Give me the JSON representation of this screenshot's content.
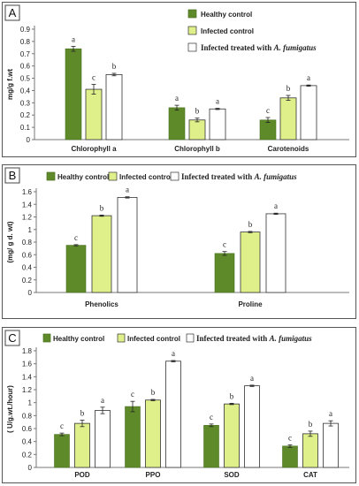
{
  "colors": {
    "healthy": "#5e8a2a",
    "infected": "#dff08a",
    "treated": "#ffffff",
    "axis": "#777777",
    "edge": "#333333"
  },
  "chart_data": [
    {
      "panel_label": "A",
      "type": "bar",
      "ylabel": "mg/g f.wt",
      "ylim": [
        0,
        0.9
      ],
      "yticks": [
        "0",
        "0.1",
        "0.2",
        "0.3",
        "0.4",
        "0.5",
        "0.6",
        "0.7",
        "0.8",
        "0.9"
      ],
      "categories": [
        "Chlorophyll a",
        "Chlorophyll b",
        "Carotenoids"
      ],
      "legend": [
        "Healthy control",
        "Infected control",
        "Infected treated with "
      ],
      "legend_italic": "A. fumigatus",
      "series": [
        {
          "name": "Healthy control",
          "values": [
            0.74,
            0.26,
            0.16
          ],
          "errors": [
            0.02,
            0.02,
            0.02
          ],
          "letters": [
            "a",
            "a",
            "c"
          ]
        },
        {
          "name": "Infected control",
          "values": [
            0.41,
            0.16,
            0.34
          ],
          "errors": [
            0.04,
            0.015,
            0.02
          ],
          "letters": [
            "c",
            "b",
            "b"
          ]
        },
        {
          "name": "Infected treated with A. fumigatus",
          "values": [
            0.53,
            0.25,
            0.44
          ],
          "errors": [
            0.01,
            0.005,
            0.005
          ],
          "letters": [
            "b",
            "a",
            "a"
          ]
        }
      ]
    },
    {
      "panel_label": "B",
      "type": "bar",
      "ylabel": "(mg/ g d. wt)",
      "ylim": [
        0,
        1.6
      ],
      "yticks": [
        "0",
        "0.2",
        "0.4",
        "0.6",
        "0.8",
        "1",
        "1.2",
        "1.4",
        "1.6"
      ],
      "categories": [
        "Phenolics",
        "Proline"
      ],
      "legend": [
        "Healthy control",
        "Infected control",
        "Infected treated with "
      ],
      "legend_italic": "A. fumigatus",
      "series": [
        {
          "name": "Healthy control",
          "values": [
            0.75,
            0.62
          ],
          "errors": [
            0.01,
            0.03
          ],
          "letters": [
            "c",
            "c"
          ]
        },
        {
          "name": "Infected control",
          "values": [
            1.22,
            0.96
          ],
          "errors": [
            0.01,
            0.01
          ],
          "letters": [
            "b",
            "b"
          ]
        },
        {
          "name": "Infected treated with A. fumigatus",
          "values": [
            1.51,
            1.25
          ],
          "errors": [
            0.01,
            0.01
          ],
          "letters": [
            "a",
            "a"
          ]
        }
      ]
    },
    {
      "panel_label": "C",
      "type": "bar",
      "ylabel": "( U/g.wt./hour)",
      "ylim": [
        0,
        1.8
      ],
      "yticks": [
        "0",
        "0.2",
        "0.4",
        "0.6",
        "0.8",
        "1",
        "1.2",
        "1.4",
        "1.6",
        "1.8"
      ],
      "categories": [
        "POD",
        "PPO",
        "SOD",
        "CAT"
      ],
      "legend": [
        "Healthy control",
        "Infected control",
        "Infected treated with "
      ],
      "legend_italic": "A. fumigatus",
      "series": [
        {
          "name": "Healthy control",
          "values": [
            0.51,
            0.94,
            0.65,
            0.33
          ],
          "errors": [
            0.02,
            0.08,
            0.02,
            0.02
          ],
          "letters": [
            "c",
            "c",
            "c",
            "c"
          ]
        },
        {
          "name": "Infected control",
          "values": [
            0.68,
            1.04,
            0.98,
            0.52
          ],
          "errors": [
            0.05,
            0.01,
            0.01,
            0.04
          ],
          "letters": [
            "b",
            "b",
            "b",
            "b"
          ]
        },
        {
          "name": "Infected treated with A. fumigatus",
          "values": [
            0.88,
            1.64,
            1.26,
            0.68
          ],
          "errors": [
            0.05,
            0.01,
            0.01,
            0.04
          ],
          "letters": [
            "a",
            "a",
            "a",
            "a"
          ]
        }
      ]
    }
  ]
}
